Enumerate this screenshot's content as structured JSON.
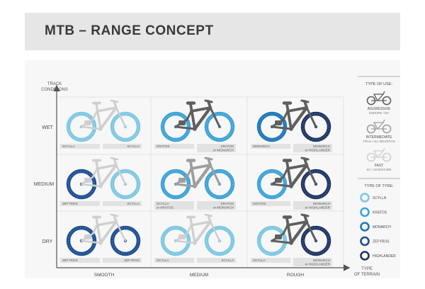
{
  "title": "MTB – RANGE CONCEPT",
  "axes": {
    "y_label_line1": "TRACK",
    "y_label_line2": "CONDITIONS",
    "x_label_line1": "TYPE",
    "x_label_line2": "OF TERRAIN"
  },
  "rows": [
    "WET",
    "MEDIUM",
    "DRY"
  ],
  "columns": [
    "SMOOTH",
    "MEDIUM",
    "ROUGH"
  ],
  "colors": {
    "scylla": "#7ec8e3",
    "kratos": "#3ea3d6",
    "monarch": "#1e77b8",
    "zefyros": "#1d4f92",
    "highlander": "#1f3563",
    "bike_fast": "#cfcfcf",
    "bike_intermediate": "#9e9e9e",
    "bike_aggressive": "#5f5f5f",
    "label_bg": "#e2e2e2"
  },
  "cells": [
    {
      "row": 0,
      "col": 0,
      "bike": "fast",
      "front": "scylla",
      "rear": "scylla",
      "front_label": [
        "SCYLLA"
      ],
      "rear_label": [
        "SCYLLA"
      ]
    },
    {
      "row": 0,
      "col": 1,
      "bike": "aggressive",
      "front": "kratos",
      "rear": "kratos",
      "front_label": [
        "KRATOS",
        "or MONARCH"
      ],
      "rear_label": [
        "KRATOS"
      ]
    },
    {
      "row": 0,
      "col": 2,
      "bike": "aggressive",
      "front": "highlander",
      "rear": "monarch",
      "front_label": [
        "MONARCH",
        "or HIGHLANDER"
      ],
      "rear_label": [
        "MONARCH"
      ]
    },
    {
      "row": 1,
      "col": 0,
      "bike": "fast",
      "front": "scylla",
      "rear": "zefyros",
      "front_label": [
        "SCYLLA"
      ],
      "rear_label": [
        "ZEFYROS"
      ]
    },
    {
      "row": 1,
      "col": 1,
      "bike": "intermediate",
      "front": "kratos",
      "rear": "kratos",
      "front_label": [
        "KRATOS",
        "or MONARCH"
      ],
      "rear_label": [
        "SCYLLA",
        "or KRATOS"
      ]
    },
    {
      "row": 1,
      "col": 2,
      "bike": "aggressive",
      "front": "highlander",
      "rear": "kratos",
      "front_label": [
        "MONARCH",
        "or HIGHLANDER"
      ],
      "rear_label": [
        "KRATOS"
      ]
    },
    {
      "row": 2,
      "col": 0,
      "bike": "fast",
      "front": "zefyros",
      "rear": "zefyros",
      "front_label": [
        "ZEFYROS"
      ],
      "rear_label": [
        "ZEFYROS"
      ]
    },
    {
      "row": 2,
      "col": 1,
      "bike": "fast",
      "front": "scylla",
      "rear": "scylla",
      "front_label": [
        "SCYLLA"
      ],
      "rear_label": [
        "SCYLLA"
      ]
    },
    {
      "row": 2,
      "col": 2,
      "bike": "aggressive",
      "front": "highlander",
      "rear": "scylla",
      "front_label": [
        "MONARCH",
        "or HIGHLANDER"
      ],
      "rear_label": [
        "SCYLLA"
      ]
    }
  ],
  "legend": {
    "use_title": "TYPE OF USE:",
    "uses": [
      {
        "key": "aggressive",
        "name": "AGGRESSIVE",
        "sub": "ENDURO / DH"
      },
      {
        "key": "intermediate",
        "name": "INTERMEDIATE",
        "sub": "TRAIL / ALL MOUNTAIN"
      },
      {
        "key": "fast",
        "name": "FAST",
        "sub": "XC / ADVENTURE"
      }
    ],
    "tyre_title": "TYPE OF TYRE:",
    "tyres": [
      {
        "key": "scylla",
        "name": "SCYLLA"
      },
      {
        "key": "kratos",
        "name": "KRATOS"
      },
      {
        "key": "monarch",
        "name": "MONARCH"
      },
      {
        "key": "zefyros",
        "name": "ZEFYROS"
      },
      {
        "key": "highlander",
        "name": "HIGHLANDER"
      }
    ]
  }
}
